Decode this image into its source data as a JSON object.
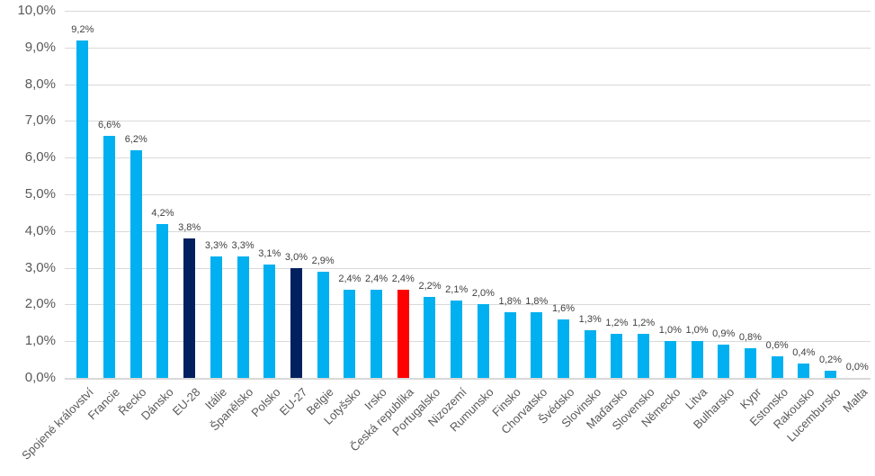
{
  "chart_data": {
    "type": "bar",
    "title": "",
    "legend": "none",
    "grid": true,
    "unit": "%",
    "categories": [
      "Spojené království",
      "Francie",
      "Řecko",
      "Dánsko",
      "EU-28",
      "Itálie",
      "Španělsko",
      "Polsko",
      "EU-27",
      "Belgie",
      "Lotyšsko",
      "Irsko",
      "Česká republika",
      "Portugalsko",
      "Nizozemí",
      "Rumunsko",
      "Finsko",
      "Chorvatsko",
      "Švédsko",
      "Slovinsko",
      "Maďarsko",
      "Slovensko",
      "Německo",
      "Litva",
      "Bulharsko",
      "Kypr",
      "Estonsko",
      "Rakousko",
      "Lucembursko",
      "Malta"
    ],
    "values": [
      9.2,
      6.6,
      6.2,
      4.2,
      3.8,
      3.3,
      3.3,
      3.1,
      3.0,
      2.9,
      2.4,
      2.4,
      2.4,
      2.2,
      2.1,
      2.0,
      1.8,
      1.8,
      1.6,
      1.3,
      1.2,
      1.2,
      1.0,
      1.0,
      0.9,
      0.8,
      0.6,
      0.4,
      0.2,
      0.0
    ],
    "value_labels": [
      "9,2%",
      "6,6%",
      "6,2%",
      "4,2%",
      "3,8%",
      "3,3%",
      "3,3%",
      "3,1%",
      "3,0%",
      "2,9%",
      "2,4%",
      "2,4%",
      "2,4%",
      "2,2%",
      "2,1%",
      "2,0%",
      "1,8%",
      "1,8%",
      "1,6%",
      "1,3%",
      "1,2%",
      "1,2%",
      "1,0%",
      "1,0%",
      "0,9%",
      "0,8%",
      "0,6%",
      "0,4%",
      "0,2%",
      "0,0%"
    ],
    "bar_roles": [
      "member",
      "member",
      "member",
      "member",
      "eu",
      "member",
      "member",
      "member",
      "eu",
      "member",
      "member",
      "member",
      "highlight",
      "member",
      "member",
      "member",
      "member",
      "member",
      "member",
      "member",
      "member",
      "member",
      "member",
      "member",
      "member",
      "member",
      "member",
      "member",
      "member",
      "member"
    ],
    "colors": {
      "member": "#00B0F0",
      "eu": "#002060",
      "highlight": "#FF0000",
      "gridline": "#D9D9D9",
      "axis_line": "#D9D9D9",
      "tick_label_text": "#595959",
      "value_label_text": "#404040",
      "background": "#FFFFFF"
    },
    "y_axis": {
      "min": 0,
      "max": 10,
      "step": 1,
      "ticks": [
        "10,0%",
        "9,0%",
        "8,0%",
        "7,0%",
        "6,0%",
        "5,0%",
        "4,0%",
        "3,0%",
        "2,0%",
        "1,0%",
        "0,0%"
      ]
    }
  }
}
